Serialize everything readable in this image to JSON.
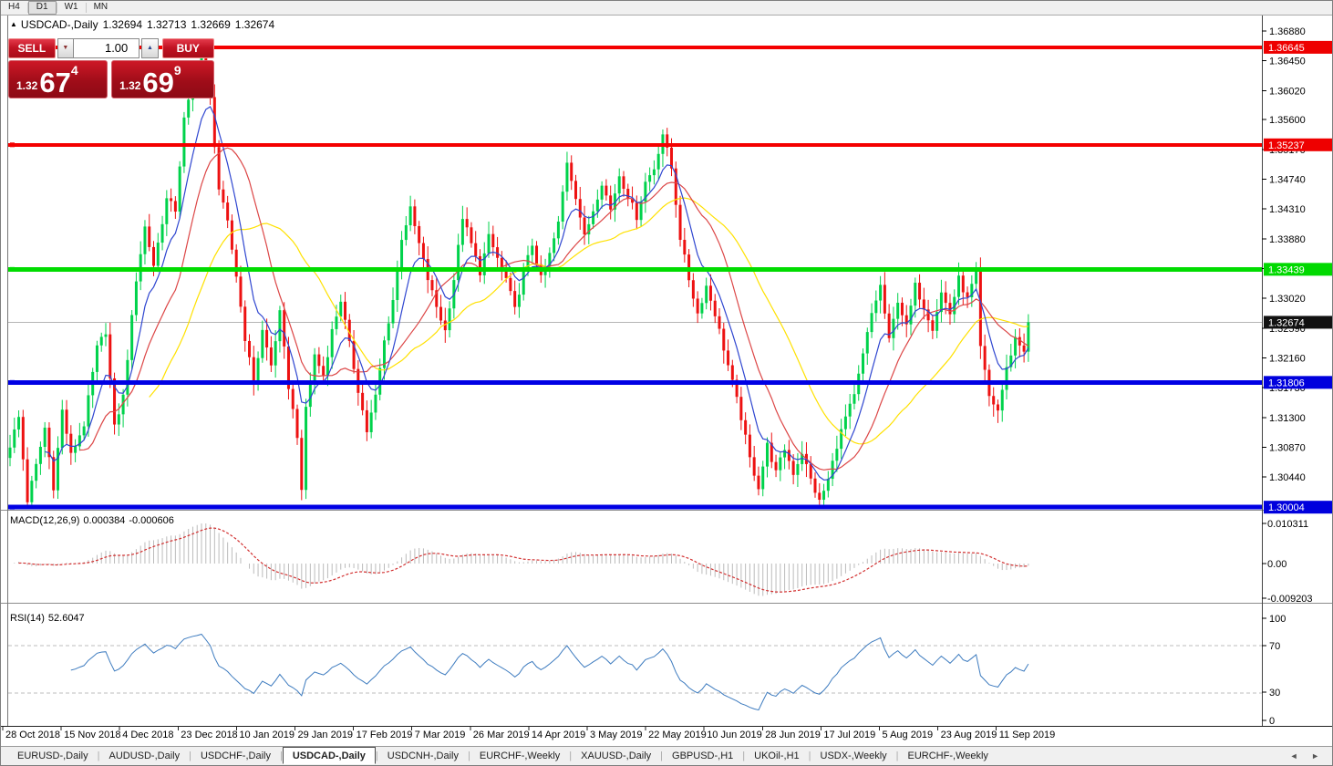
{
  "toolbar": {
    "timeframes": [
      {
        "label": "H4",
        "active": false
      },
      {
        "label": "D1",
        "active": true
      },
      {
        "label": "W1",
        "active": false
      },
      {
        "label": "MN",
        "active": false
      }
    ]
  },
  "chart_title": {
    "marker": "▲",
    "symbol": "USDCAD-,Daily",
    "open": "1.32694",
    "high": "1.32713",
    "low": "1.32669",
    "close": "1.32674"
  },
  "trade_panel": {
    "sell_label": "SELL",
    "buy_label": "BUY",
    "volume": "1.00",
    "spin_down": "▼",
    "spin_up": "▲",
    "sell_price": {
      "prefix": "1.32",
      "big": "67",
      "sup": "4"
    },
    "buy_price": {
      "prefix": "1.32",
      "big": "69",
      "sup": "9"
    }
  },
  "macd_panel": {
    "name": "MACD(12,26,9)",
    "value_main": "0.000384",
    "value_signal": "-0.000606",
    "axis_labels": [
      "0.010311",
      "0.00",
      "-0.009203"
    ]
  },
  "rsi_panel": {
    "name": "RSI(14)",
    "value": "52.6047",
    "axis_labels": [
      "100",
      "70",
      "30",
      "0"
    ],
    "levels": [
      70,
      30
    ]
  },
  "tabs": {
    "items": [
      {
        "label": "EURUSD-,Daily",
        "active": false
      },
      {
        "label": "AUDUSD-,Daily",
        "active": false
      },
      {
        "label": "USDCHF-,Daily",
        "active": false
      },
      {
        "label": "USDCAD-,Daily",
        "active": true
      },
      {
        "label": "USDCNH-,Daily",
        "active": false
      },
      {
        "label": "EURCHF-,Weekly",
        "active": false
      },
      {
        "label": "XAUUSD-,Daily",
        "active": false
      },
      {
        "label": "GBPUSD-,H1",
        "active": false
      },
      {
        "label": "UKOil-,H1",
        "active": false
      },
      {
        "label": "USDX-,Weekly",
        "active": false
      },
      {
        "label": "EURCHF-,Weekly",
        "active": false
      }
    ],
    "scroll_left": "◄",
    "scroll_right": "►"
  },
  "chart_data": {
    "type": "candlestick",
    "symbol": "USDCAD",
    "timeframe": "Daily",
    "bars": 235,
    "current": {
      "open": 1.32694,
      "high": 1.32713,
      "low": 1.32669,
      "close": 1.32674,
      "bid": 1.32674,
      "ask": 1.32699
    },
    "x_labels": [
      "28 Oct 2018",
      "15 Nov 2018",
      "4 Dec 2018",
      "23 Dec 2018",
      "10 Jan 2019",
      "29 Jan 2019",
      "17 Feb 2019",
      "7 Mar 2019",
      "26 Mar 2019",
      "14 Apr 2019",
      "3 May 2019",
      "22 May 2019",
      "10 Jun 2019",
      "28 Jun 2019",
      "17 Jul 2019",
      "5 Aug 2019",
      "23 Aug 2019",
      "11 Sep 2019"
    ],
    "price_axis_ticks": [
      "1.36880",
      "1.36450",
      "1.36020",
      "1.35600",
      "1.35170",
      "1.34740",
      "1.34310",
      "1.33880",
      "1.33450",
      "1.33020",
      "1.32590",
      "1.32160",
      "1.31730",
      "1.31300",
      "1.30870",
      "1.30440"
    ],
    "price_tags": [
      {
        "label": "1.36645",
        "value": 1.36645,
        "bg": "#ee0000",
        "fg": "#ffffff",
        "role": "resistance"
      },
      {
        "label": "1.35237",
        "value": 1.35237,
        "bg": "#ee0000",
        "fg": "#ffffff",
        "role": "resistance"
      },
      {
        "label": "1.33439",
        "value": 1.33439,
        "bg": "#00d900",
        "fg": "#ffffff",
        "role": "pivot"
      },
      {
        "label": "1.32674",
        "value": 1.32674,
        "bg": "#111111",
        "fg": "#ffffff",
        "role": "current-price"
      },
      {
        "label": "1.31806",
        "value": 1.31806,
        "bg": "#0000dd",
        "fg": "#ffffff",
        "role": "support"
      },
      {
        "label": "1.30004",
        "value": 1.30004,
        "bg": "#0000dd",
        "fg": "#ffffff",
        "role": "support"
      }
    ],
    "hlines": [
      {
        "value": 1.36645,
        "color": "#f40000",
        "width": 4
      },
      {
        "value": 1.35237,
        "color": "#f40000",
        "width": 4
      },
      {
        "value": 1.33439,
        "color": "#00dc00",
        "width": 5
      },
      {
        "value": 1.31806,
        "color": "#0000e4",
        "width": 5
      },
      {
        "value": 1.30004,
        "color": "#0000e4",
        "width": 5
      }
    ],
    "current_price_line": {
      "value": 1.32674,
      "color": "#b4b4b4"
    },
    "colors": {
      "bull": "#00d24b",
      "bear": "#ed1111",
      "ma_fast_blue": "#2f46d0",
      "ma_mid_red": "#dc4646",
      "ma_slow_yellow": "#ffe100",
      "macd_hist": "#bbbbbb",
      "macd_signal": "#d23030",
      "rsi_line": "#3d7bbf"
    },
    "moving_averages": [
      {
        "name": "ma-fast",
        "type": "ema",
        "period": 8
      },
      {
        "name": "ma-mid",
        "type": "sma",
        "period": 16
      },
      {
        "name": "ma-slow",
        "type": "sma",
        "period": 32
      }
    ],
    "macd": {
      "fast": 12,
      "slow": 26,
      "signal": 9
    },
    "rsi": {
      "period": 14
    },
    "jitter": 0.0011,
    "close_waypoints": [
      [
        0,
        1.309
      ],
      [
        2,
        1.313
      ],
      [
        4,
        1.301
      ],
      [
        6,
        1.306
      ],
      [
        8,
        1.3115
      ],
      [
        10,
        1.303
      ],
      [
        12,
        1.314
      ],
      [
        14,
        1.3075
      ],
      [
        17,
        1.312
      ],
      [
        20,
        1.323
      ],
      [
        22,
        1.3255
      ],
      [
        24,
        1.3115
      ],
      [
        26,
        1.316
      ],
      [
        29,
        1.333
      ],
      [
        31,
        1.3405
      ],
      [
        33,
        1.335
      ],
      [
        36,
        1.3445
      ],
      [
        38,
        1.343
      ],
      [
        40,
        1.356
      ],
      [
        42,
        1.361
      ],
      [
        44,
        1.365
      ],
      [
        46,
        1.359
      ],
      [
        48,
        1.346
      ],
      [
        50,
        1.341
      ],
      [
        52,
        1.3335
      ],
      [
        54,
        1.3245
      ],
      [
        56,
        1.318
      ],
      [
        58,
        1.3255
      ],
      [
        60,
        1.3205
      ],
      [
        62,
        1.328
      ],
      [
        64,
        1.3175
      ],
      [
        66,
        1.3105
      ],
      [
        67,
        1.302
      ],
      [
        68,
        1.3145
      ],
      [
        70,
        1.322
      ],
      [
        72,
        1.319
      ],
      [
        74,
        1.3255
      ],
      [
        76,
        1.33
      ],
      [
        78,
        1.3235
      ],
      [
        80,
        1.317
      ],
      [
        82,
        1.311
      ],
      [
        84,
        1.316
      ],
      [
        86,
        1.324
      ],
      [
        88,
        1.33
      ],
      [
        90,
        1.339
      ],
      [
        92,
        1.343
      ],
      [
        94,
        1.338
      ],
      [
        96,
        1.333
      ],
      [
        98,
        1.329
      ],
      [
        100,
        1.3255
      ],
      [
        102,
        1.333
      ],
      [
        104,
        1.342
      ],
      [
        106,
        1.338
      ],
      [
        108,
        1.334
      ],
      [
        110,
        1.339
      ],
      [
        112,
        1.336
      ],
      [
        114,
        1.333
      ],
      [
        116,
        1.3285
      ],
      [
        118,
        1.334
      ],
      [
        120,
        1.338
      ],
      [
        122,
        1.333
      ],
      [
        124,
        1.3365
      ],
      [
        126,
        1.341
      ],
      [
        128,
        1.35
      ],
      [
        130,
        1.345
      ],
      [
        132,
        1.339
      ],
      [
        134,
        1.343
      ],
      [
        136,
        1.347
      ],
      [
        138,
        1.343
      ],
      [
        140,
        1.348
      ],
      [
        142,
        1.345
      ],
      [
        144,
        1.342
      ],
      [
        146,
        1.347
      ],
      [
        148,
        1.349
      ],
      [
        150,
        1.354
      ],
      [
        152,
        1.349
      ],
      [
        154,
        1.339
      ],
      [
        156,
        1.333
      ],
      [
        158,
        1.328
      ],
      [
        160,
        1.332
      ],
      [
        162,
        1.328
      ],
      [
        164,
        1.323
      ],
      [
        166,
        1.318
      ],
      [
        168,
        1.313
      ],
      [
        170,
        1.307
      ],
      [
        172,
        1.303
      ],
      [
        174,
        1.309
      ],
      [
        176,
        1.305
      ],
      [
        178,
        1.3085
      ],
      [
        180,
        1.305
      ],
      [
        182,
        1.308
      ],
      [
        184,
        1.304
      ],
      [
        186,
        1.3008
      ],
      [
        188,
        1.304
      ],
      [
        190,
        1.309
      ],
      [
        192,
        1.313
      ],
      [
        194,
        1.316
      ],
      [
        196,
        1.322
      ],
      [
        198,
        1.328
      ],
      [
        200,
        1.332
      ],
      [
        202,
        1.324
      ],
      [
        204,
        1.33
      ],
      [
        206,
        1.326
      ],
      [
        208,
        1.332
      ],
      [
        210,
        1.329
      ],
      [
        212,
        1.326
      ],
      [
        214,
        1.331
      ],
      [
        216,
        1.328
      ],
      [
        218,
        1.333
      ],
      [
        220,
        1.33
      ],
      [
        222,
        1.334
      ],
      [
        223,
        1.323
      ],
      [
        225,
        1.316
      ],
      [
        227,
        1.314
      ],
      [
        229,
        1.32
      ],
      [
        231,
        1.3245
      ],
      [
        233,
        1.3225
      ],
      [
        234,
        1.32674
      ]
    ]
  }
}
